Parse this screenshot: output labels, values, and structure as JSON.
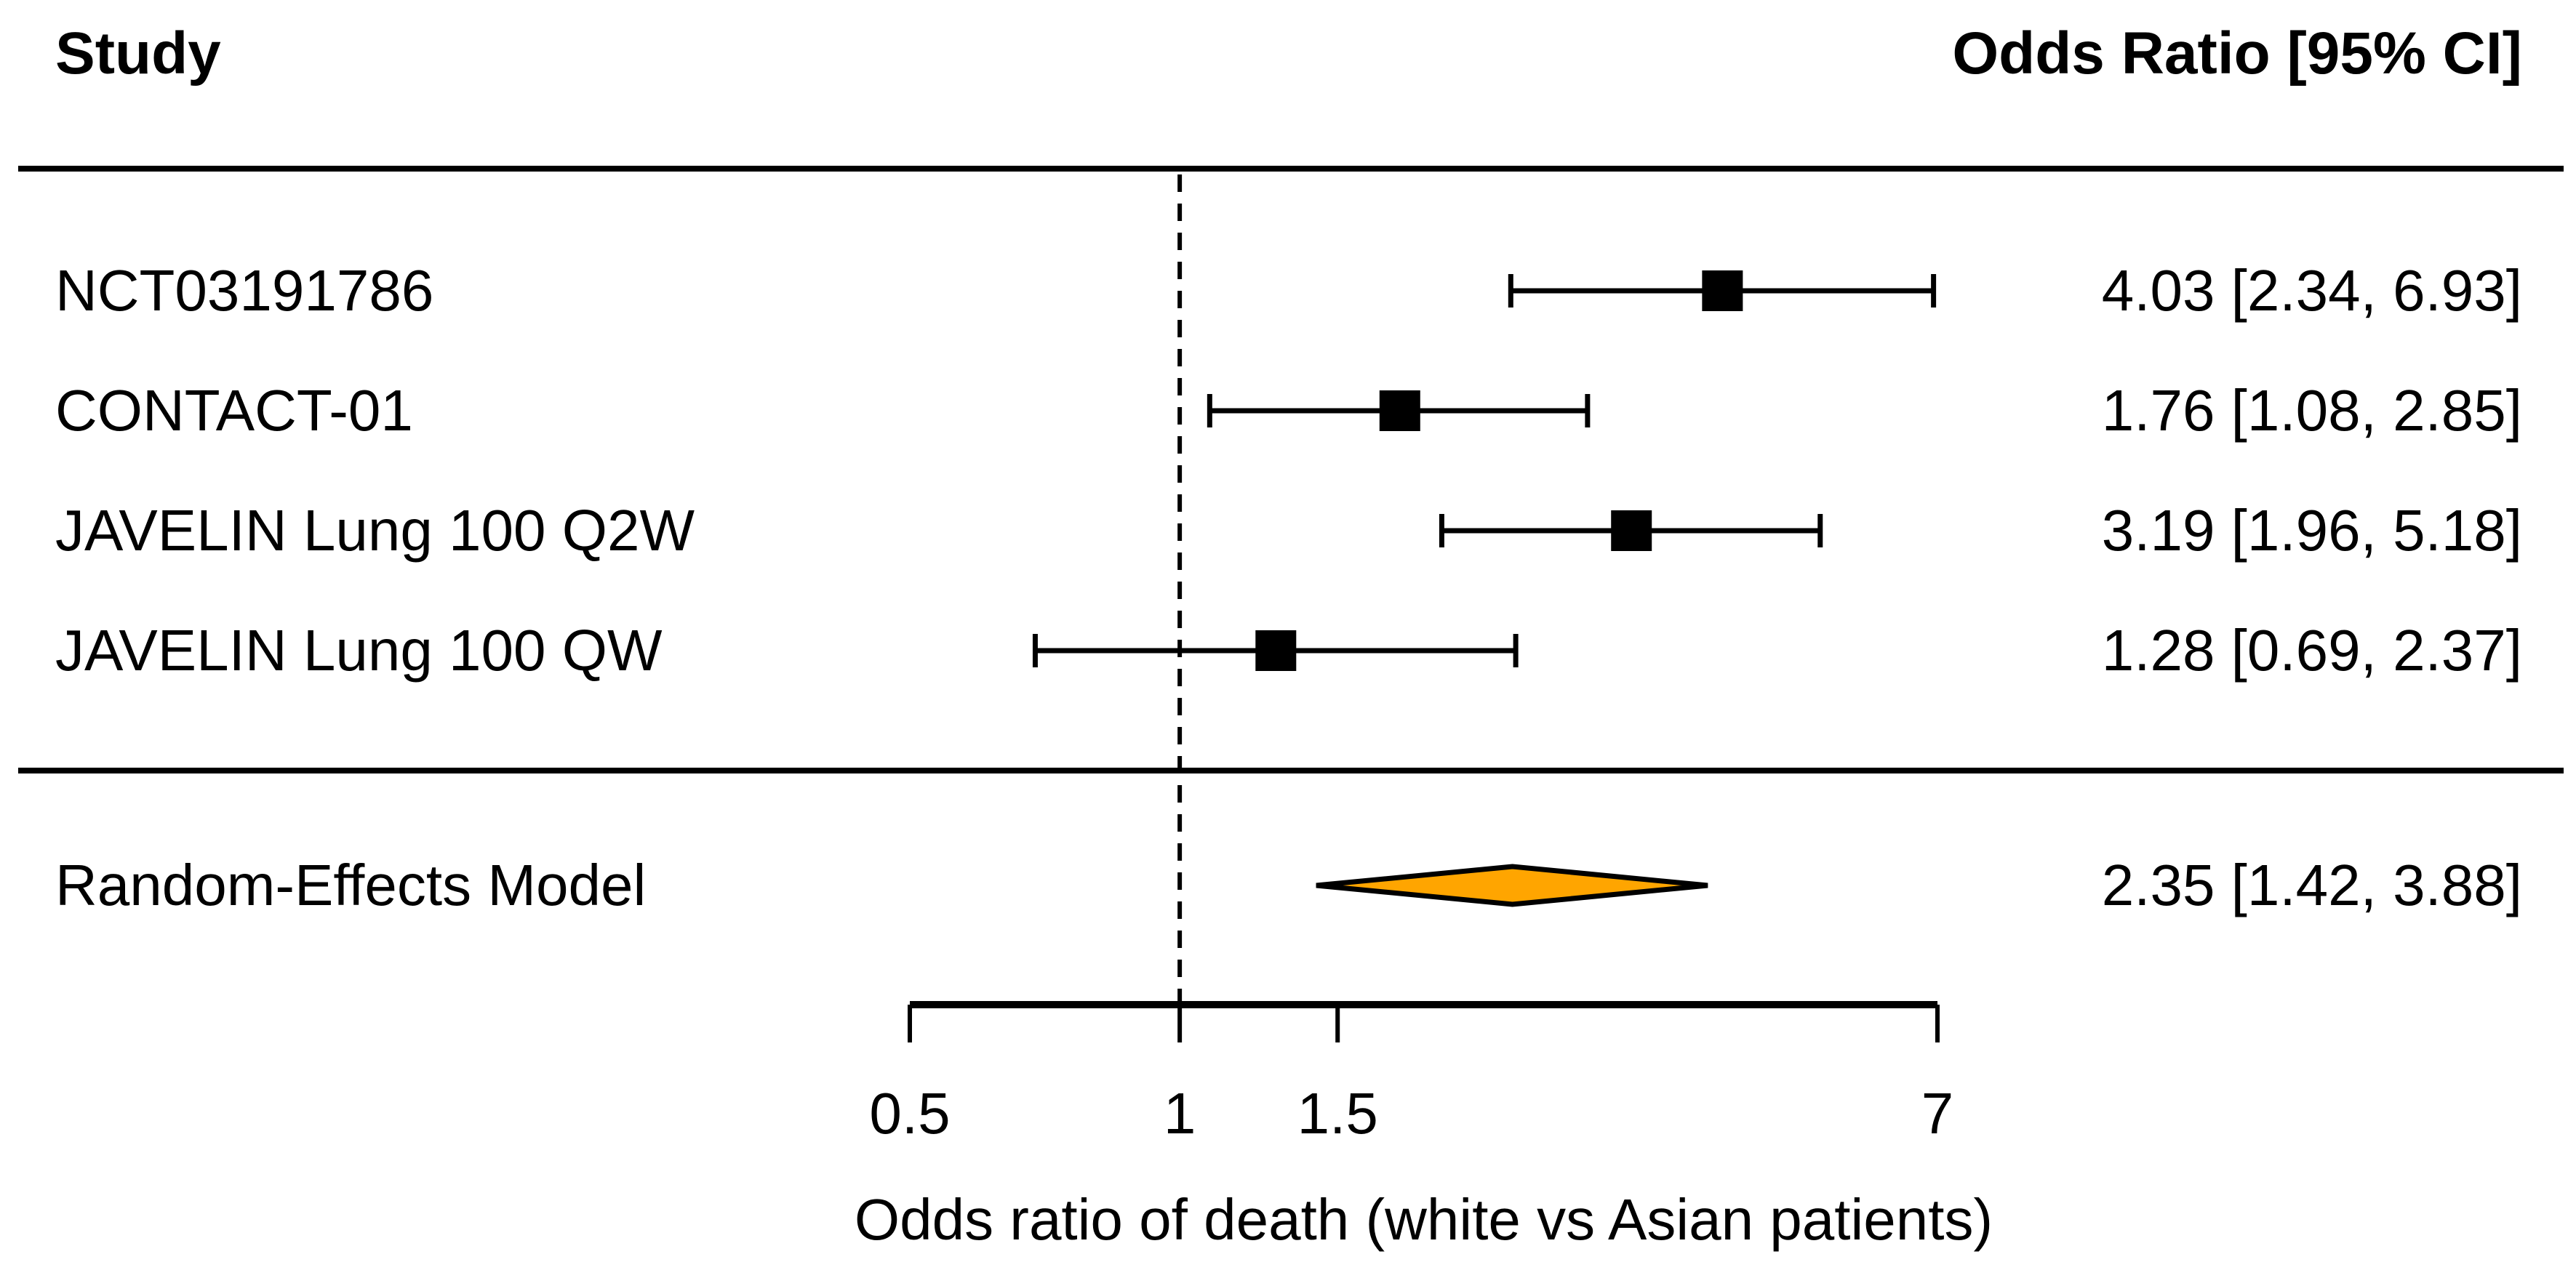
{
  "table": {
    "study_header": "Study",
    "or_header": "Odds Ratio [95% CI]"
  },
  "chart_data": {
    "type": "forest",
    "x_axis": {
      "scale": "log",
      "label": "Odds ratio of death (white vs Asian patients)",
      "range": [
        0.5,
        7
      ],
      "ticks": [
        0.5,
        1,
        1.5,
        7
      ],
      "tick_labels": [
        "0.5",
        "1",
        "1.5",
        "7"
      ],
      "reference_line": 1
    },
    "studies": [
      {
        "label": "NCT03191786",
        "or": 4.03,
        "ci_low": 2.34,
        "ci_high": 6.93,
        "or_text": "4.03 [2.34, 6.93]"
      },
      {
        "label": "CONTACT-01",
        "or": 1.76,
        "ci_low": 1.08,
        "ci_high": 2.85,
        "or_text": "1.76 [1.08, 2.85]"
      },
      {
        "label": "JAVELIN Lung 100 Q2W",
        "or": 3.19,
        "ci_low": 1.96,
        "ci_high": 5.18,
        "or_text": "3.19 [1.96, 5.18]"
      },
      {
        "label": "JAVELIN Lung 100 QW",
        "or": 1.28,
        "ci_low": 0.69,
        "ci_high": 2.37,
        "or_text": "1.28 [0.69, 2.37]"
      }
    ],
    "summary": {
      "label": "Random-Effects Model",
      "or": 2.35,
      "ci_low": 1.42,
      "ci_high": 3.88,
      "or_text": "2.35 [1.42, 3.88]"
    },
    "style": {
      "marker_color": "#000000",
      "diamond_fill": "#FFA500",
      "diamond_stroke": "#000000",
      "text_color": "#000000",
      "background": "#FFFFFF"
    }
  }
}
